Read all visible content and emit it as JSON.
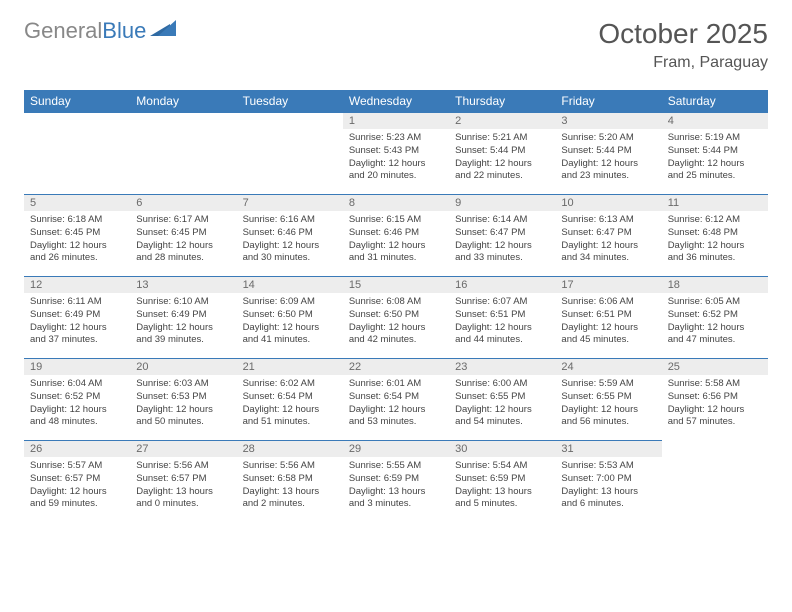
{
  "logo": {
    "text1": "General",
    "text2": "Blue"
  },
  "title": "October 2025",
  "location": "Fram, Paraguay",
  "colors": {
    "header_bg": "#3a7ab8",
    "header_text": "#ffffff",
    "daynum_bg": "#ededed",
    "daynum_text": "#6a6a6a",
    "body_text": "#444444",
    "border": "#3a7ab8"
  },
  "weekdays": [
    "Sunday",
    "Monday",
    "Tuesday",
    "Wednesday",
    "Thursday",
    "Friday",
    "Saturday"
  ],
  "weeks": [
    [
      null,
      null,
      null,
      {
        "n": "1",
        "sr": "5:23 AM",
        "ss": "5:43 PM",
        "dl": "12 hours and 20 minutes."
      },
      {
        "n": "2",
        "sr": "5:21 AM",
        "ss": "5:44 PM",
        "dl": "12 hours and 22 minutes."
      },
      {
        "n": "3",
        "sr": "5:20 AM",
        "ss": "5:44 PM",
        "dl": "12 hours and 23 minutes."
      },
      {
        "n": "4",
        "sr": "5:19 AM",
        "ss": "5:44 PM",
        "dl": "12 hours and 25 minutes."
      }
    ],
    [
      {
        "n": "5",
        "sr": "6:18 AM",
        "ss": "6:45 PM",
        "dl": "12 hours and 26 minutes."
      },
      {
        "n": "6",
        "sr": "6:17 AM",
        "ss": "6:45 PM",
        "dl": "12 hours and 28 minutes."
      },
      {
        "n": "7",
        "sr": "6:16 AM",
        "ss": "6:46 PM",
        "dl": "12 hours and 30 minutes."
      },
      {
        "n": "8",
        "sr": "6:15 AM",
        "ss": "6:46 PM",
        "dl": "12 hours and 31 minutes."
      },
      {
        "n": "9",
        "sr": "6:14 AM",
        "ss": "6:47 PM",
        "dl": "12 hours and 33 minutes."
      },
      {
        "n": "10",
        "sr": "6:13 AM",
        "ss": "6:47 PM",
        "dl": "12 hours and 34 minutes."
      },
      {
        "n": "11",
        "sr": "6:12 AM",
        "ss": "6:48 PM",
        "dl": "12 hours and 36 minutes."
      }
    ],
    [
      {
        "n": "12",
        "sr": "6:11 AM",
        "ss": "6:49 PM",
        "dl": "12 hours and 37 minutes."
      },
      {
        "n": "13",
        "sr": "6:10 AM",
        "ss": "6:49 PM",
        "dl": "12 hours and 39 minutes."
      },
      {
        "n": "14",
        "sr": "6:09 AM",
        "ss": "6:50 PM",
        "dl": "12 hours and 41 minutes."
      },
      {
        "n": "15",
        "sr": "6:08 AM",
        "ss": "6:50 PM",
        "dl": "12 hours and 42 minutes."
      },
      {
        "n": "16",
        "sr": "6:07 AM",
        "ss": "6:51 PM",
        "dl": "12 hours and 44 minutes."
      },
      {
        "n": "17",
        "sr": "6:06 AM",
        "ss": "6:51 PM",
        "dl": "12 hours and 45 minutes."
      },
      {
        "n": "18",
        "sr": "6:05 AM",
        "ss": "6:52 PM",
        "dl": "12 hours and 47 minutes."
      }
    ],
    [
      {
        "n": "19",
        "sr": "6:04 AM",
        "ss": "6:52 PM",
        "dl": "12 hours and 48 minutes."
      },
      {
        "n": "20",
        "sr": "6:03 AM",
        "ss": "6:53 PM",
        "dl": "12 hours and 50 minutes."
      },
      {
        "n": "21",
        "sr": "6:02 AM",
        "ss": "6:54 PM",
        "dl": "12 hours and 51 minutes."
      },
      {
        "n": "22",
        "sr": "6:01 AM",
        "ss": "6:54 PM",
        "dl": "12 hours and 53 minutes."
      },
      {
        "n": "23",
        "sr": "6:00 AM",
        "ss": "6:55 PM",
        "dl": "12 hours and 54 minutes."
      },
      {
        "n": "24",
        "sr": "5:59 AM",
        "ss": "6:55 PM",
        "dl": "12 hours and 56 minutes."
      },
      {
        "n": "25",
        "sr": "5:58 AM",
        "ss": "6:56 PM",
        "dl": "12 hours and 57 minutes."
      }
    ],
    [
      {
        "n": "26",
        "sr": "5:57 AM",
        "ss": "6:57 PM",
        "dl": "12 hours and 59 minutes."
      },
      {
        "n": "27",
        "sr": "5:56 AM",
        "ss": "6:57 PM",
        "dl": "13 hours and 0 minutes."
      },
      {
        "n": "28",
        "sr": "5:56 AM",
        "ss": "6:58 PM",
        "dl": "13 hours and 2 minutes."
      },
      {
        "n": "29",
        "sr": "5:55 AM",
        "ss": "6:59 PM",
        "dl": "13 hours and 3 minutes."
      },
      {
        "n": "30",
        "sr": "5:54 AM",
        "ss": "6:59 PM",
        "dl": "13 hours and 5 minutes."
      },
      {
        "n": "31",
        "sr": "5:53 AM",
        "ss": "7:00 PM",
        "dl": "13 hours and 6 minutes."
      },
      null
    ]
  ],
  "labels": {
    "sunrise": "Sunrise: ",
    "sunset": "Sunset: ",
    "daylight": "Daylight: "
  }
}
